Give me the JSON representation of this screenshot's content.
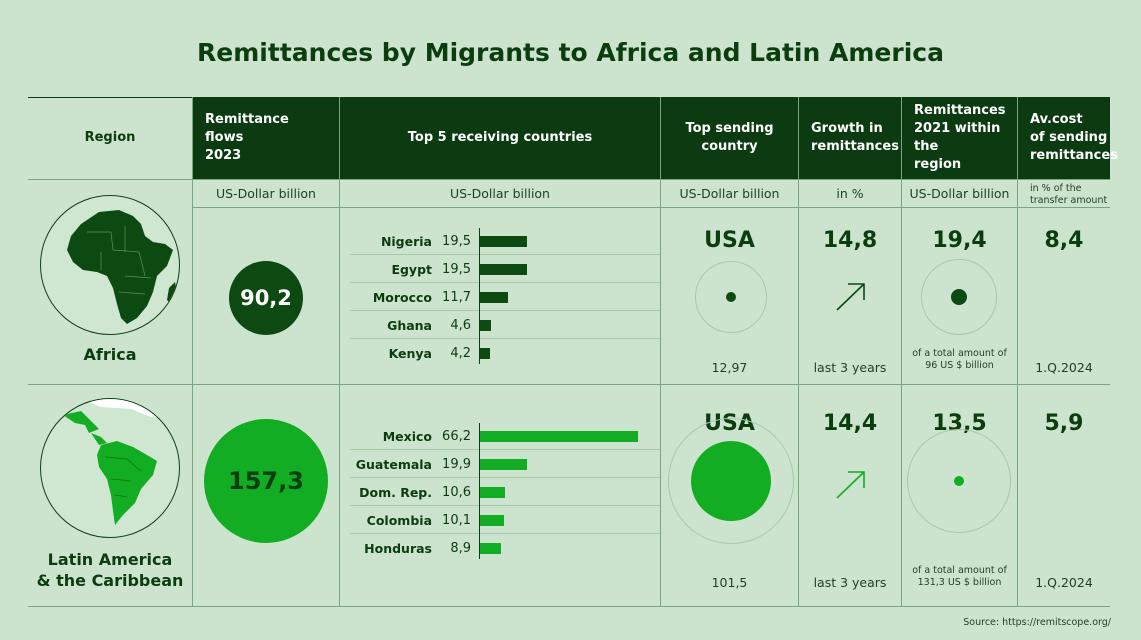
{
  "title": "Remittances by Migrants to Africa and Latin America",
  "headers": {
    "region": "Region",
    "flows": "Remittance flows\n2023",
    "top5": "Top 5 receiving countries",
    "sending": "Top sending country",
    "growth": "Growth in\nremittances",
    "within": "Remittances\n2021 within the\nregion",
    "cost": "Av.cost\nof sending\nremittances"
  },
  "units": {
    "flows": "US-Dollar billion",
    "top5": "US-Dollar billion",
    "sending": "US-Dollar billion",
    "growth": "in %",
    "within": "US-Dollar billion",
    "cost_line1": "in % of the",
    "cost_line2": "transfer amount"
  },
  "colors": {
    "africa": "#0c4a12",
    "latam": "#12ad22",
    "background": "#cce3cd",
    "header": "#0c3b11"
  },
  "regions": [
    {
      "name": "Africa",
      "flow": "90,2",
      "sending_country": "USA",
      "sending_value": "12,97",
      "growth": "14,8",
      "growth_period": "last 3 years",
      "within": "19,4",
      "within_note1": "of a total amount of",
      "within_note2": "96 US $ billion",
      "cost": "8,4",
      "cost_period": "1.Q.2024"
    },
    {
      "name_line1": "Latin America",
      "name_line2": "& the Caribbean",
      "flow": "157,3",
      "sending_country": "USA",
      "sending_value": "101,5",
      "growth": "14,4",
      "growth_period": "last 3 years",
      "within": "13,5",
      "within_note1": "of a total amount of",
      "within_note2": "131,3 US $ billion",
      "cost": "5,9",
      "cost_period": "1.Q.2024"
    }
  ],
  "chart_data": [
    {
      "type": "bar",
      "categories": [
        "Nigeria",
        "Egypt",
        "Morocco",
        "Ghana",
        "Kenya"
      ],
      "values": [
        19.5,
        19.5,
        11.7,
        4.6,
        4.2
      ],
      "labels": [
        "19,5",
        "19,5",
        "11,7",
        "4,6",
        "4,2"
      ]
    },
    {
      "type": "bar",
      "categories": [
        "Mexico",
        "Guatemala",
        "Dom. Rep.",
        "Colombia",
        "Honduras"
      ],
      "values": [
        66.2,
        19.9,
        10.6,
        10.1,
        8.9
      ],
      "labels": [
        "66,2",
        "19,9",
        "10,6",
        "10,1",
        "8,9"
      ]
    }
  ],
  "source": "Source: https://remitscope.org/"
}
